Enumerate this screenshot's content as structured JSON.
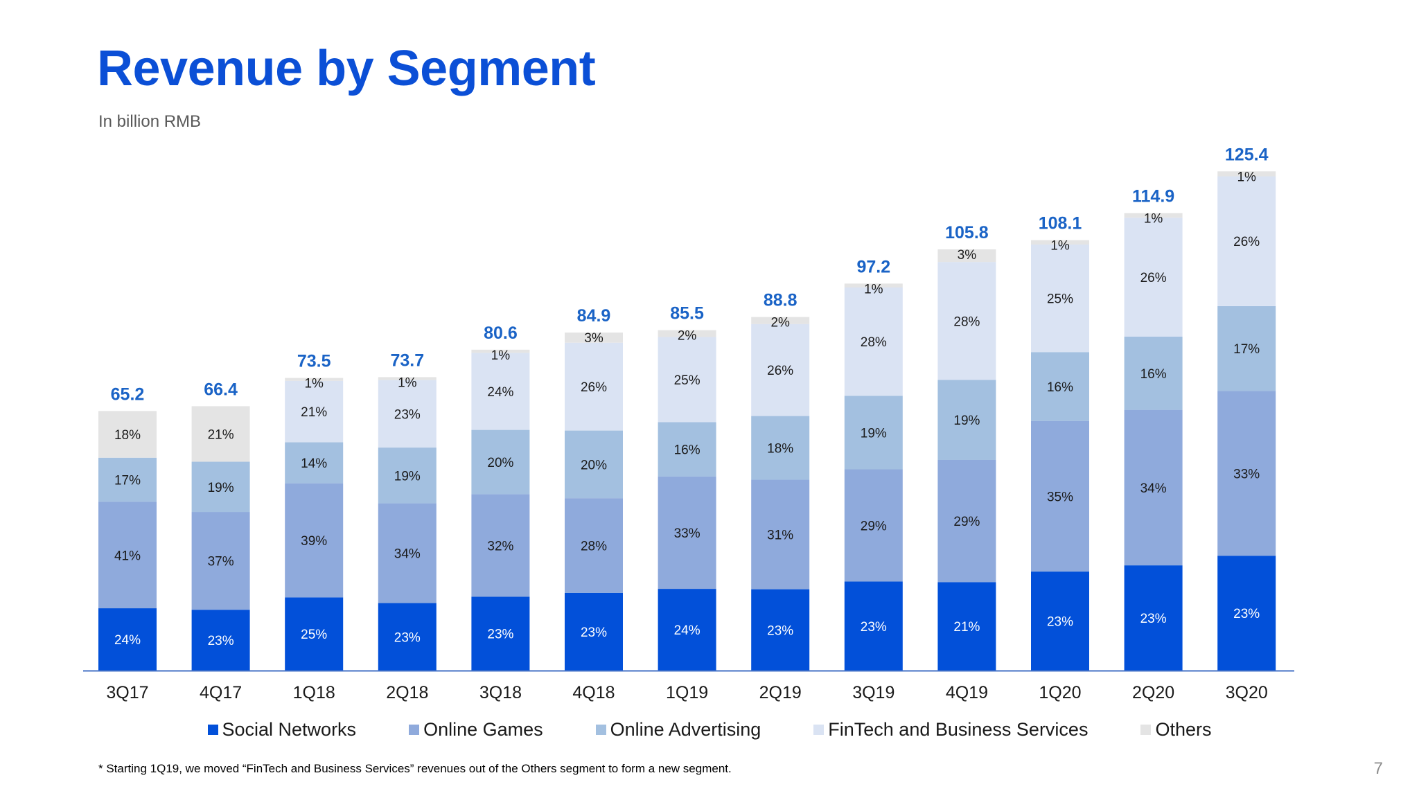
{
  "slide": {
    "title": "Revenue by Segment",
    "subtitle": "In billion RMB",
    "footnote": "* Starting 1Q19, we moved “FinTech and Business Services” revenues out of the Others segment to form a new segment.",
    "page_number": "7"
  },
  "colors": {
    "title": "#0b4fd6",
    "total_label": "#1a63c6",
    "axis": "#4472c4",
    "series": [
      "#0250d9",
      "#8faadc",
      "#a3c0e0",
      "#dae3f3",
      "#e4e4e4"
    ]
  },
  "chart_data": {
    "type": "bar",
    "stacked": true,
    "ylabel": "In billion RMB",
    "categories": [
      "3Q17",
      "4Q17",
      "1Q18",
      "2Q18",
      "3Q18",
      "4Q18",
      "1Q19",
      "2Q19",
      "3Q19",
      "4Q19",
      "1Q20",
      "2Q20",
      "3Q20"
    ],
    "totals": [
      65.2,
      66.4,
      73.5,
      73.7,
      80.6,
      84.9,
      85.5,
      88.8,
      97.2,
      105.8,
      108.1,
      114.9,
      125.4
    ],
    "total_labels": [
      "65.2",
      "66.4",
      "73.5",
      "73.7",
      "80.6",
      "84.9",
      "85.5",
      "88.8",
      "97.2",
      "105.8",
      "108.1",
      "114.9",
      "125.4"
    ],
    "series": [
      {
        "name": "Social Networks",
        "percent": [
          24,
          23,
          25,
          23,
          23,
          23,
          24,
          23,
          23,
          21,
          23,
          23,
          23
        ],
        "labels": [
          "24%",
          "23%",
          "25%",
          "23%",
          "23%",
          "23%",
          "24%",
          "23%",
          "23%",
          "21%",
          "23%",
          "23%",
          "23%"
        ]
      },
      {
        "name": "Online Games",
        "percent": [
          41,
          37,
          39,
          34,
          32,
          28,
          33,
          31,
          29,
          29,
          35,
          34,
          33
        ],
        "labels": [
          "41%",
          "37%",
          "39%",
          "34%",
          "32%",
          "28%",
          "33%",
          "31%",
          "29%",
          "29%",
          "35%",
          "34%",
          "33%"
        ]
      },
      {
        "name": "Online Advertising",
        "percent": [
          17,
          19,
          14,
          19,
          20,
          20,
          16,
          18,
          19,
          19,
          16,
          16,
          17
        ],
        "labels": [
          "17%",
          "19%",
          "14%",
          "19%",
          "20%",
          "20%",
          "16%",
          "18%",
          "19%",
          "19%",
          "16%",
          "16%",
          "17%"
        ]
      },
      {
        "name": "FinTech and Business Services",
        "percent": [
          null,
          null,
          21,
          23,
          24,
          26,
          25,
          26,
          28,
          28,
          25,
          26,
          26
        ],
        "labels": [
          "",
          "",
          "21%",
          "23%",
          "24%",
          "26%",
          "25%",
          "26%",
          "28%",
          "28%",
          "25%",
          "26%",
          "26%"
        ]
      },
      {
        "name": "Others",
        "percent": [
          18,
          21,
          1,
          1,
          1,
          3,
          2,
          2,
          1,
          3,
          1,
          1,
          1
        ],
        "labels": [
          "18%",
          "21%",
          "1%",
          "1%",
          "1%",
          "3%",
          "2%",
          "2%",
          "1%",
          "3%",
          "1%",
          "1%",
          "1%"
        ]
      }
    ]
  }
}
